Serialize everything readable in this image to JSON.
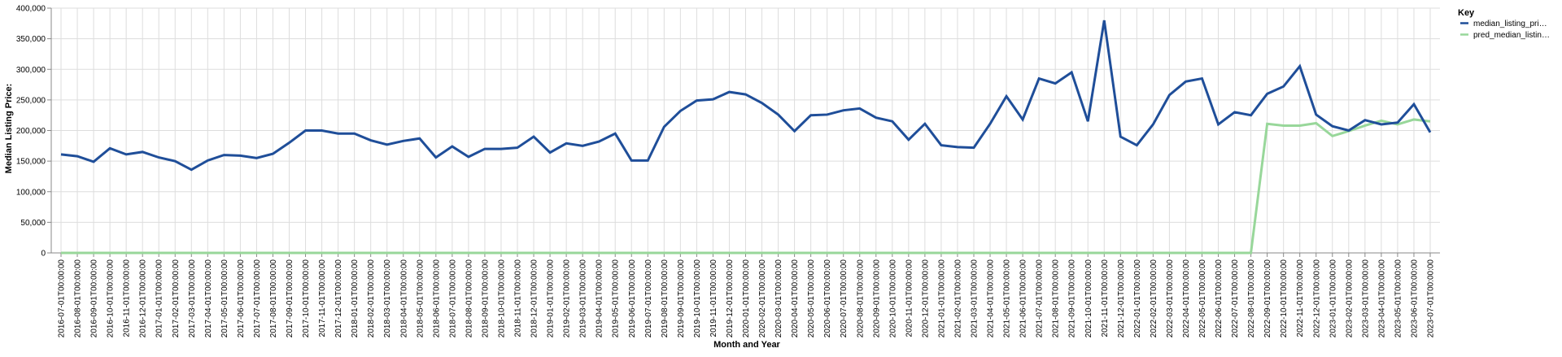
{
  "chart_data": {
    "type": "line",
    "xlabel": "Month and Year",
    "ylabel": "Median Listing Price:",
    "ylim": [
      0,
      400000
    ],
    "y_ticks": [
      "0",
      "50,000",
      "100,000",
      "150,000",
      "200,000",
      "250,000",
      "300,000",
      "350,000",
      "400,000"
    ],
    "grid": true,
    "legend": {
      "title": "Key",
      "placement": "right",
      "entries": [
        "median_listing_pri…",
        "pred_median_listin…"
      ]
    },
    "categories": [
      "2016-07-01T00:00:00",
      "2016-08-01T00:00:00",
      "2016-09-01T00:00:00",
      "2016-10-01T00:00:00",
      "2016-11-01T00:00:00",
      "2016-12-01T00:00:00",
      "2017-01-01T00:00:00",
      "2017-02-01T00:00:00",
      "2017-03-01T00:00:00",
      "2017-04-01T00:00:00",
      "2017-05-01T00:00:00",
      "2017-06-01T00:00:00",
      "2017-07-01T00:00:00",
      "2017-08-01T00:00:00",
      "2017-09-01T00:00:00",
      "2017-10-01T00:00:00",
      "2017-11-01T00:00:00",
      "2017-12-01T00:00:00",
      "2018-01-01T00:00:00",
      "2018-02-01T00:00:00",
      "2018-03-01T00:00:00",
      "2018-04-01T00:00:00",
      "2018-05-01T00:00:00",
      "2018-06-01T00:00:00",
      "2018-07-01T00:00:00",
      "2018-08-01T00:00:00",
      "2018-09-01T00:00:00",
      "2018-10-01T00:00:00",
      "2018-11-01T00:00:00",
      "2018-12-01T00:00:00",
      "2019-01-01T00:00:00",
      "2019-02-01T00:00:00",
      "2019-03-01T00:00:00",
      "2019-04-01T00:00:00",
      "2019-05-01T00:00:00",
      "2019-06-01T00:00:00",
      "2019-07-01T00:00:00",
      "2019-08-01T00:00:00",
      "2019-09-01T00:00:00",
      "2019-10-01T00:00:00",
      "2019-11-01T00:00:00",
      "2019-12-01T00:00:00",
      "2020-01-01T00:00:00",
      "2020-02-01T00:00:00",
      "2020-03-01T00:00:00",
      "2020-04-01T00:00:00",
      "2020-05-01T00:00:00",
      "2020-06-01T00:00:00",
      "2020-07-01T00:00:00",
      "2020-08-01T00:00:00",
      "2020-09-01T00:00:00",
      "2020-10-01T00:00:00",
      "2020-11-01T00:00:00",
      "2020-12-01T00:00:00",
      "2021-01-01T00:00:00",
      "2021-02-01T00:00:00",
      "2021-03-01T00:00:00",
      "2021-04-01T00:00:00",
      "2021-05-01T00:00:00",
      "2021-06-01T00:00:00",
      "2021-07-01T00:00:00",
      "2021-08-01T00:00:00",
      "2021-09-01T00:00:00",
      "2021-10-01T00:00:00",
      "2021-11-01T00:00:00",
      "2021-12-01T00:00:00",
      "2022-01-01T00:00:00",
      "2022-02-01T00:00:00",
      "2022-03-01T00:00:00",
      "2022-04-01T00:00:00",
      "2022-05-01T00:00:00",
      "2022-06-01T00:00:00",
      "2022-07-01T00:00:00",
      "2022-08-01T00:00:00",
      "2022-09-01T00:00:00",
      "2022-10-01T00:00:00",
      "2022-11-01T00:00:00",
      "2022-12-01T00:00:00",
      "2023-01-01T00:00:00",
      "2023-02-01T00:00:00",
      "2023-03-01T00:00:00",
      "2023-04-01T00:00:00",
      "2023-05-01T00:00:00",
      "2023-06-01T00:00:00",
      "2023-07-01T00:00:00"
    ],
    "series": [
      {
        "name": "median_listing_pri…",
        "color": "#1f4e99",
        "values": [
          161000,
          158000,
          149000,
          171000,
          161000,
          165000,
          156000,
          150000,
          136000,
          151000,
          160000,
          159000,
          155000,
          162000,
          180000,
          200000,
          200000,
          195000,
          195000,
          184000,
          177000,
          183000,
          187000,
          156000,
          174000,
          157000,
          170000,
          170000,
          172000,
          190000,
          164000,
          179000,
          175000,
          182000,
          195000,
          151000,
          151000,
          206000,
          232000,
          249000,
          251000,
          263000,
          259000,
          245000,
          226000,
          199000,
          225000,
          226000,
          233000,
          236000,
          221000,
          215000,
          185000,
          211000,
          176000,
          173000,
          172000,
          211000,
          256000,
          218000,
          285000,
          277000,
          295000,
          215000,
          380000,
          190000,
          176000,
          210000,
          258000,
          280000,
          285000,
          210000,
          230000,
          225000,
          260000,
          272000,
          305000,
          226000,
          207000,
          200000,
          217000,
          210000,
          213000,
          243000,
          197000
        ]
      },
      {
        "name": "pred_median_listin…",
        "color": "#98d79a",
        "values": [
          0,
          0,
          0,
          0,
          0,
          0,
          0,
          0,
          0,
          0,
          0,
          0,
          0,
          0,
          0,
          0,
          0,
          0,
          0,
          0,
          0,
          0,
          0,
          0,
          0,
          0,
          0,
          0,
          0,
          0,
          0,
          0,
          0,
          0,
          0,
          0,
          0,
          0,
          0,
          0,
          0,
          0,
          0,
          0,
          0,
          0,
          0,
          0,
          0,
          0,
          0,
          0,
          0,
          0,
          0,
          0,
          0,
          0,
          0,
          0,
          0,
          0,
          0,
          0,
          0,
          0,
          0,
          0,
          0,
          0,
          0,
          0,
          0,
          0,
          211000,
          208000,
          208000,
          212000,
          191000,
          199000,
          208000,
          216000,
          210000,
          218000,
          215000
        ]
      }
    ]
  }
}
